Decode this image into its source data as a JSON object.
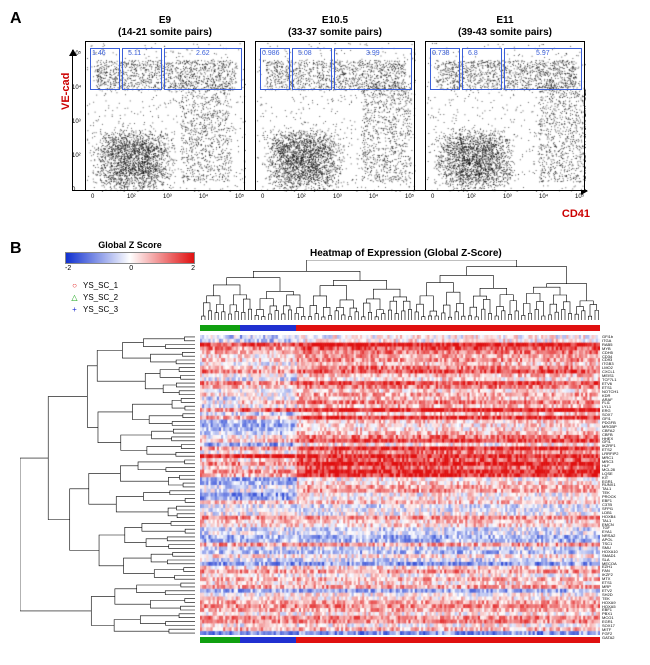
{
  "panelA": {
    "label": "A",
    "y_axis_label": "VE-cad",
    "x_axis_label": "CD41",
    "axis_label_color": "#cc0000",
    "gate_border_color": "#3a5fd9",
    "plots": [
      {
        "title_line1": "E9",
        "title_line2": "(14-21 somite pairs)",
        "gate_values": [
          "1.46",
          "5.11",
          "2.62"
        ],
        "density_seed": 11,
        "pattern": "E9"
      },
      {
        "title_line1": "E10.5",
        "title_line2": "(33-37 somite pairs)",
        "gate_values": [
          "0.986",
          "5.08",
          "3.99"
        ],
        "density_seed": 22,
        "pattern": "E10"
      },
      {
        "title_line1": "E11",
        "title_line2": "(39-43 somite pairs)",
        "gate_values": [
          "0.738",
          "6.8",
          "5.97"
        ],
        "density_seed": 33,
        "pattern": "E11"
      }
    ],
    "x_ticks": [
      "0",
      "10²",
      "10³",
      "10⁴",
      "10⁵"
    ],
    "y_ticks": [
      "0",
      "10²",
      "10³",
      "10⁴",
      "10⁵"
    ]
  },
  "panelB": {
    "label": "B",
    "zscore": {
      "title": "Global Z Score",
      "ticks": [
        "-2",
        "0",
        "2"
      ],
      "low_color": "#1030d0",
      "mid_color": "#ffffff",
      "high_color": "#e01010"
    },
    "samples": [
      {
        "name": "YS_SC_1",
        "symbol": "○",
        "color": "#e01010"
      },
      {
        "name": "YS_SC_2",
        "symbol": "△",
        "color": "#10a010"
      },
      {
        "name": "YS_SC_3",
        "symbol": "+",
        "color": "#2030d0"
      }
    ],
    "heatmap_title": "Heatmap of Expression (Global Z-Score)",
    "group_bar": [
      {
        "color": "#10a010",
        "frac": 0.1
      },
      {
        "color": "#2030d0",
        "frac": 0.14
      },
      {
        "color": "#e01010",
        "frac": 0.76
      }
    ],
    "heatmap": {
      "n_rows": 78,
      "n_cols": 190,
      "seed": 7
    },
    "genes": [
      "GFI1b",
      "ITGA",
      "RAB5",
      "MYB",
      "CDH5",
      "CD34",
      "CD93",
      "ITGB3",
      "LMO2",
      "CXCL1",
      "MEIS1",
      "TCF7L1",
      "ETV6",
      "ETS1",
      "NOTCH1",
      "KDR",
      "ARAF",
      "FLI1",
      "LYL1",
      "ERG",
      "SOX7",
      "GFI1",
      "PDGFB",
      "MRGBP",
      "CBFA2",
      "CBFB",
      "HHEX",
      "GFI1",
      "IKZRF1",
      "ETS2",
      "LRRFIP2",
      "MRC1",
      "MRC3",
      "HLF",
      "MCL28",
      "LQSE",
      "KIT",
      "EGR1",
      "RUNX1",
      "TAL1",
      "TEK",
      "PROCK",
      "EBF1",
      "C37B",
      "SFPI1",
      "LDB1",
      "HOXB4",
      "TAL1",
      "EMCN",
      "TGF",
      "EYA1",
      "NRSA2",
      "APOL",
      "TSC1",
      "SMU",
      "HOXA10",
      "SMAD1",
      "SLA",
      "MECOA",
      "EZH1",
      "FAN",
      "IKZF2",
      "MTX",
      "ETS1",
      "MRP",
      "ETV2",
      "SH2D",
      "TEK",
      "HOXA9",
      "HOXA5",
      "EBF1",
      "PBX1",
      "MCO1",
      "EGR1",
      "SOX17",
      "MITF",
      "FGF2",
      "GATA2"
    ]
  },
  "colors": {
    "black": "#000000",
    "white": "#ffffff"
  }
}
